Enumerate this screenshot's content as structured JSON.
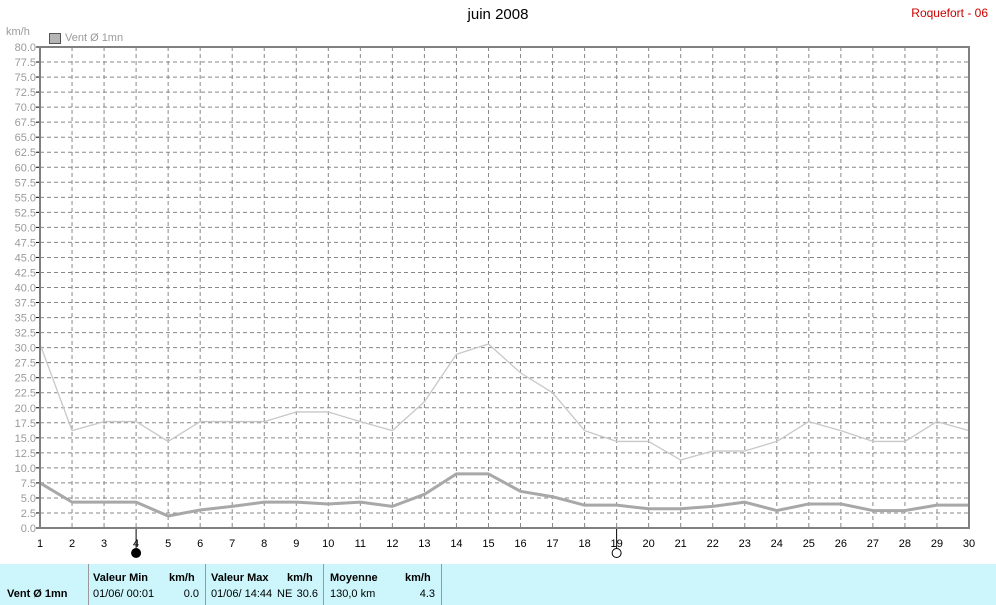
{
  "header": {
    "title": "juin 2008",
    "station": "Roquefort - 06",
    "unit": "km/h",
    "legend_label": "Vent Ø 1mn"
  },
  "colors": {
    "max_line": "#c8c8c8",
    "avg_line": "#a8a8a8",
    "grid": "#888888",
    "footer_bg": "#ccf6fb",
    "station_text": "#cc0000"
  },
  "moon_phases": [
    {
      "day": 4,
      "phase": "new-moon"
    },
    {
      "day": 19,
      "phase": "full-moon"
    }
  ],
  "chart_data": {
    "type": "line",
    "title": "juin 2008",
    "ylabel": "km/h",
    "xlabel": "",
    "x": [
      1,
      2,
      3,
      4,
      5,
      6,
      7,
      8,
      9,
      10,
      11,
      12,
      13,
      14,
      15,
      16,
      17,
      18,
      19,
      20,
      21,
      22,
      23,
      24,
      25,
      26,
      27,
      28,
      29,
      30
    ],
    "xlim": [
      1,
      30
    ],
    "ylim": [
      0,
      80
    ],
    "ytick_step": 2.5,
    "grid": true,
    "legend": "top-left",
    "series": [
      {
        "name": "Vent Ø 1mn",
        "values": [
          7.5,
          4.3,
          4.3,
          4.3,
          2.0,
          3.0,
          3.6,
          4.3,
          4.3,
          4.0,
          4.3,
          3.6,
          5.6,
          9.0,
          9.0,
          6.1,
          5.2,
          3.8,
          3.8,
          3.2,
          3.2,
          3.6,
          4.3,
          2.9,
          4.0,
          4.0,
          2.9,
          2.9,
          3.8,
          3.8
        ]
      },
      {
        "values": [
          30.6,
          16.2,
          17.7,
          17.7,
          14.4,
          17.7,
          17.7,
          17.7,
          19.3,
          19.3,
          17.7,
          16.2,
          21.0,
          28.9,
          30.6,
          25.8,
          22.5,
          16.2,
          14.4,
          14.4,
          11.3,
          12.8,
          12.8,
          14.4,
          17.7,
          16.2,
          14.4,
          14.4,
          17.7,
          16.2
        ]
      }
    ]
  },
  "footer": {
    "label": "Vent Ø 1mn",
    "min": {
      "header": "Valeur Min",
      "unit": "km/h",
      "date": "01/06/  00:01",
      "value": "0.0"
    },
    "max": {
      "header": "Valeur Max",
      "unit": "km/h",
      "date": "01/06/  14:44",
      "dir": "NE",
      "value": "30.6"
    },
    "avg": {
      "header": "Moyenne",
      "unit": "km/h",
      "distance": "130,0 km",
      "value": "4.3"
    }
  }
}
